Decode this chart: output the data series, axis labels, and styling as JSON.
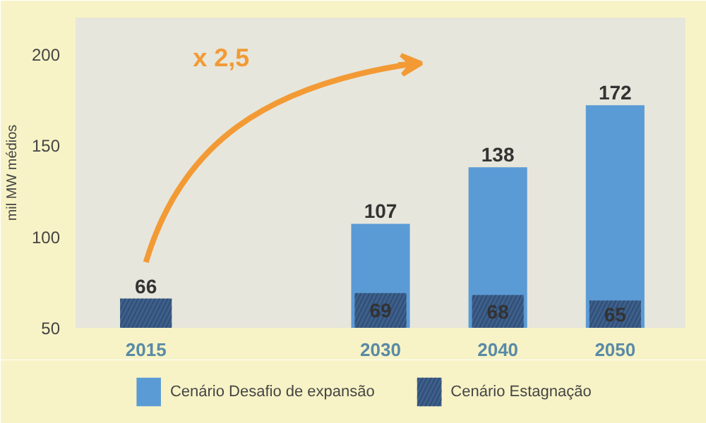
{
  "chart_data": {
    "type": "bar",
    "ylabel": "mil MW médios",
    "categories": [
      "2015",
      null,
      "2030",
      "2040",
      "2050"
    ],
    "series": [
      {
        "name": "Cenário Desafio de expansão",
        "color": "#5b9bd5",
        "values": [
          null,
          null,
          107,
          138,
          172
        ]
      },
      {
        "name": "Cenário Estagnação",
        "color": "#3d5f8c",
        "values": [
          66,
          null,
          69,
          68,
          65
        ]
      }
    ],
    "ylim": [
      50,
      220
    ],
    "yticks": [
      50,
      100,
      150,
      200
    ],
    "data_labels": true,
    "grid": false,
    "legend": "bottom",
    "annotations": [
      "x 2,5"
    ]
  }
}
